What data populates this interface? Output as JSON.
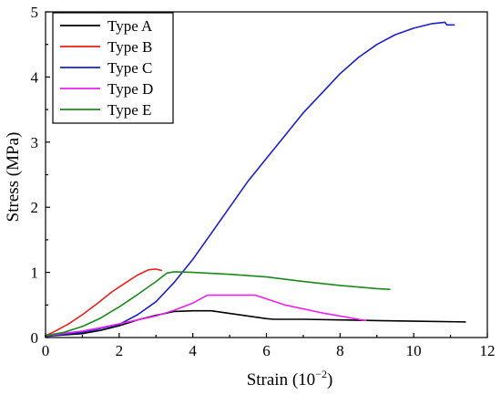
{
  "chart_data": {
    "type": "line",
    "xlabel_main": "Strain (10",
    "xlabel_exp": "−2",
    "xlabel_close": ")",
    "ylabel": "Stress (MPa)",
    "xlim": [
      0,
      12
    ],
    "ylim": [
      0,
      5
    ],
    "xticks": [
      "0",
      "2",
      "4",
      "6",
      "8",
      "10",
      "12"
    ],
    "yticks": [
      "0",
      "1",
      "2",
      "3",
      "4",
      "5"
    ],
    "legend_position": "top-left",
    "series": [
      {
        "name": "Type A",
        "color": "#000000",
        "points": [
          [
            0,
            0.02
          ],
          [
            1.0,
            0.06
          ],
          [
            1.5,
            0.11
          ],
          [
            2.0,
            0.18
          ],
          [
            2.5,
            0.27
          ],
          [
            3.0,
            0.34
          ],
          [
            3.5,
            0.4
          ],
          [
            4.0,
            0.41
          ],
          [
            4.5,
            0.41
          ],
          [
            5.0,
            0.37
          ],
          [
            5.5,
            0.33
          ],
          [
            6.0,
            0.29
          ],
          [
            6.2,
            0.28
          ],
          [
            7.0,
            0.28
          ],
          [
            8.0,
            0.27
          ],
          [
            9.0,
            0.26
          ],
          [
            10.0,
            0.25
          ],
          [
            11.4,
            0.24
          ]
        ]
      },
      {
        "name": "Type B",
        "color": "#e8211b",
        "points": [
          [
            0,
            0.03
          ],
          [
            0.2,
            0.08
          ],
          [
            0.6,
            0.2
          ],
          [
            1.0,
            0.35
          ],
          [
            1.4,
            0.52
          ],
          [
            1.8,
            0.7
          ],
          [
            2.2,
            0.85
          ],
          [
            2.5,
            0.96
          ],
          [
            2.8,
            1.04
          ],
          [
            3.0,
            1.05
          ],
          [
            3.15,
            1.03
          ]
        ]
      },
      {
        "name": "Type C",
        "color": "#1c20c8",
        "points": [
          [
            0,
            0.02
          ],
          [
            1.0,
            0.08
          ],
          [
            2.0,
            0.2
          ],
          [
            2.5,
            0.35
          ],
          [
            3.0,
            0.55
          ],
          [
            3.5,
            0.85
          ],
          [
            4.0,
            1.2
          ],
          [
            4.5,
            1.6
          ],
          [
            5.0,
            2.0
          ],
          [
            5.5,
            2.4
          ],
          [
            6.0,
            2.75
          ],
          [
            6.5,
            3.1
          ],
          [
            7.0,
            3.45
          ],
          [
            7.5,
            3.75
          ],
          [
            8.0,
            4.05
          ],
          [
            8.5,
            4.3
          ],
          [
            9.0,
            4.5
          ],
          [
            9.5,
            4.65
          ],
          [
            10.0,
            4.75
          ],
          [
            10.5,
            4.82
          ],
          [
            10.85,
            4.84
          ],
          [
            10.9,
            4.8
          ],
          [
            11.1,
            4.8
          ]
        ]
      },
      {
        "name": "Type D",
        "color": "#ee20ee",
        "points": [
          [
            0,
            0.03
          ],
          [
            1.0,
            0.1
          ],
          [
            1.5,
            0.15
          ],
          [
            2.0,
            0.21
          ],
          [
            2.5,
            0.27
          ],
          [
            3.0,
            0.33
          ],
          [
            3.5,
            0.42
          ],
          [
            4.0,
            0.53
          ],
          [
            4.4,
            0.65
          ],
          [
            5.0,
            0.65
          ],
          [
            5.7,
            0.65
          ],
          [
            6.5,
            0.5
          ],
          [
            7.5,
            0.38
          ],
          [
            8.7,
            0.26
          ]
        ]
      },
      {
        "name": "Type E",
        "color": "#1b8a1d",
        "points": [
          [
            0,
            0.03
          ],
          [
            0.5,
            0.08
          ],
          [
            1.0,
            0.17
          ],
          [
            1.5,
            0.3
          ],
          [
            2.0,
            0.47
          ],
          [
            2.5,
            0.66
          ],
          [
            3.0,
            0.86
          ],
          [
            3.3,
            0.99
          ],
          [
            3.5,
            1.01
          ],
          [
            4.0,
            1.0
          ],
          [
            5.0,
            0.97
          ],
          [
            6.0,
            0.93
          ],
          [
            7.0,
            0.86
          ],
          [
            8.0,
            0.8
          ],
          [
            9.0,
            0.75
          ],
          [
            9.35,
            0.74
          ]
        ]
      }
    ]
  }
}
